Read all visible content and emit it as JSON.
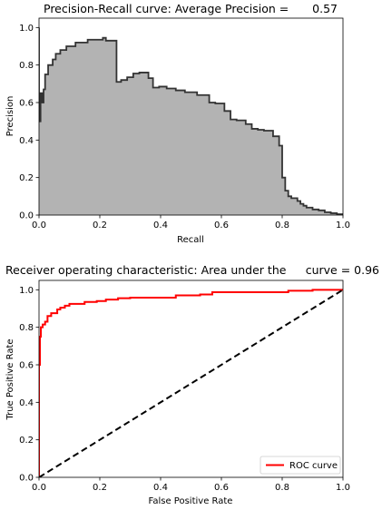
{
  "chart_data": [
    {
      "type": "area",
      "title_left": "Precision-Recall curve: Average Precision =",
      "title_value": "0.57",
      "xlabel": "Recall",
      "ylabel": "Precision",
      "xlim": [
        0,
        1
      ],
      "ylim": [
        0,
        1.05
      ],
      "xticks": [
        "0.0",
        "0.2",
        "0.4",
        "0.6",
        "0.8",
        "1.0"
      ],
      "yticks": [
        "0.0",
        "0.2",
        "0.4",
        "0.6",
        "0.8",
        "1.0"
      ],
      "fill_color": "#b3b3b3",
      "line_color": "#333333",
      "points": [
        [
          0.0,
          1.0
        ],
        [
          0.0,
          0.5
        ],
        [
          0.005,
          0.5
        ],
        [
          0.005,
          0.65
        ],
        [
          0.01,
          0.65
        ],
        [
          0.01,
          0.6
        ],
        [
          0.015,
          0.6
        ],
        [
          0.015,
          0.67
        ],
        [
          0.02,
          0.67
        ],
        [
          0.02,
          0.75
        ],
        [
          0.03,
          0.75
        ],
        [
          0.03,
          0.8
        ],
        [
          0.045,
          0.8
        ],
        [
          0.045,
          0.83
        ],
        [
          0.055,
          0.83
        ],
        [
          0.055,
          0.86
        ],
        [
          0.07,
          0.86
        ],
        [
          0.07,
          0.88
        ],
        [
          0.09,
          0.88
        ],
        [
          0.09,
          0.9
        ],
        [
          0.12,
          0.9
        ],
        [
          0.12,
          0.92
        ],
        [
          0.16,
          0.92
        ],
        [
          0.16,
          0.935
        ],
        [
          0.21,
          0.935
        ],
        [
          0.21,
          0.945
        ],
        [
          0.22,
          0.945
        ],
        [
          0.22,
          0.93
        ],
        [
          0.255,
          0.93
        ],
        [
          0.255,
          0.71
        ],
        [
          0.27,
          0.71
        ],
        [
          0.27,
          0.72
        ],
        [
          0.29,
          0.72
        ],
        [
          0.29,
          0.735
        ],
        [
          0.31,
          0.735
        ],
        [
          0.31,
          0.755
        ],
        [
          0.33,
          0.755
        ],
        [
          0.33,
          0.76
        ],
        [
          0.36,
          0.76
        ],
        [
          0.36,
          0.73
        ],
        [
          0.375,
          0.73
        ],
        [
          0.375,
          0.68
        ],
        [
          0.395,
          0.68
        ],
        [
          0.395,
          0.685
        ],
        [
          0.42,
          0.685
        ],
        [
          0.42,
          0.675
        ],
        [
          0.45,
          0.675
        ],
        [
          0.45,
          0.665
        ],
        [
          0.48,
          0.665
        ],
        [
          0.48,
          0.655
        ],
        [
          0.52,
          0.655
        ],
        [
          0.52,
          0.64
        ],
        [
          0.56,
          0.64
        ],
        [
          0.56,
          0.6
        ],
        [
          0.58,
          0.6
        ],
        [
          0.58,
          0.595
        ],
        [
          0.61,
          0.595
        ],
        [
          0.61,
          0.555
        ],
        [
          0.63,
          0.555
        ],
        [
          0.63,
          0.51
        ],
        [
          0.65,
          0.51
        ],
        [
          0.65,
          0.505
        ],
        [
          0.68,
          0.505
        ],
        [
          0.68,
          0.485
        ],
        [
          0.7,
          0.485
        ],
        [
          0.7,
          0.46
        ],
        [
          0.72,
          0.46
        ],
        [
          0.72,
          0.455
        ],
        [
          0.74,
          0.455
        ],
        [
          0.74,
          0.45
        ],
        [
          0.77,
          0.45
        ],
        [
          0.77,
          0.42
        ],
        [
          0.79,
          0.42
        ],
        [
          0.79,
          0.37
        ],
        [
          0.8,
          0.37
        ],
        [
          0.8,
          0.2
        ],
        [
          0.81,
          0.2
        ],
        [
          0.81,
          0.13
        ],
        [
          0.82,
          0.13
        ],
        [
          0.82,
          0.1
        ],
        [
          0.83,
          0.1
        ],
        [
          0.83,
          0.09
        ],
        [
          0.85,
          0.09
        ],
        [
          0.85,
          0.075
        ],
        [
          0.86,
          0.075
        ],
        [
          0.86,
          0.06
        ],
        [
          0.87,
          0.06
        ],
        [
          0.87,
          0.05
        ],
        [
          0.88,
          0.05
        ],
        [
          0.88,
          0.04
        ],
        [
          0.9,
          0.04
        ],
        [
          0.9,
          0.03
        ],
        [
          0.92,
          0.03
        ],
        [
          0.92,
          0.025
        ],
        [
          0.94,
          0.025
        ],
        [
          0.94,
          0.015
        ],
        [
          0.96,
          0.015
        ],
        [
          0.96,
          0.01
        ],
        [
          0.98,
          0.01
        ],
        [
          0.98,
          0.005
        ],
        [
          1.0,
          0.005
        ],
        [
          1.0,
          0.0
        ]
      ]
    },
    {
      "type": "line",
      "title_left": "Receiver operating characteristic: Area under the",
      "title_value": "curve = 0.96",
      "xlabel": "False Positive Rate",
      "ylabel": "True Positive Rate",
      "xlim": [
        0,
        1
      ],
      "ylim": [
        0,
        1.05
      ],
      "xticks": [
        "0.0",
        "0.2",
        "0.4",
        "0.6",
        "0.8",
        "1.0"
      ],
      "yticks": [
        "0.0",
        "0.2",
        "0.4",
        "0.6",
        "0.8",
        "1.0"
      ],
      "legend_placement": "lower-right",
      "series": [
        {
          "name": "ROC curve",
          "color": "#ff0000",
          "style": "solid",
          "points": [
            [
              0.0,
              0.0
            ],
            [
              0.0,
              0.6
            ],
            [
              0.003,
              0.6
            ],
            [
              0.003,
              0.75
            ],
            [
              0.006,
              0.75
            ],
            [
              0.006,
              0.8
            ],
            [
              0.012,
              0.8
            ],
            [
              0.012,
              0.815
            ],
            [
              0.02,
              0.815
            ],
            [
              0.02,
              0.83
            ],
            [
              0.028,
              0.83
            ],
            [
              0.028,
              0.86
            ],
            [
              0.04,
              0.86
            ],
            [
              0.04,
              0.875
            ],
            [
              0.06,
              0.875
            ],
            [
              0.06,
              0.895
            ],
            [
              0.07,
              0.895
            ],
            [
              0.07,
              0.905
            ],
            [
              0.085,
              0.905
            ],
            [
              0.085,
              0.915
            ],
            [
              0.1,
              0.915
            ],
            [
              0.1,
              0.925
            ],
            [
              0.15,
              0.925
            ],
            [
              0.15,
              0.935
            ],
            [
              0.19,
              0.935
            ],
            [
              0.19,
              0.94
            ],
            [
              0.22,
              0.94
            ],
            [
              0.22,
              0.948
            ],
            [
              0.26,
              0.948
            ],
            [
              0.26,
              0.955
            ],
            [
              0.3,
              0.955
            ],
            [
              0.3,
              0.958
            ],
            [
              0.45,
              0.958
            ],
            [
              0.45,
              0.97
            ],
            [
              0.53,
              0.97
            ],
            [
              0.53,
              0.975
            ],
            [
              0.57,
              0.975
            ],
            [
              0.57,
              0.987
            ],
            [
              0.82,
              0.987
            ],
            [
              0.82,
              0.995
            ],
            [
              0.9,
              0.995
            ],
            [
              0.9,
              1.0
            ],
            [
              1.0,
              1.0
            ]
          ]
        },
        {
          "name": "",
          "color": "#000000",
          "style": "dashed",
          "points": [
            [
              0.0,
              0.0
            ],
            [
              1.0,
              1.0
            ]
          ]
        }
      ]
    }
  ]
}
